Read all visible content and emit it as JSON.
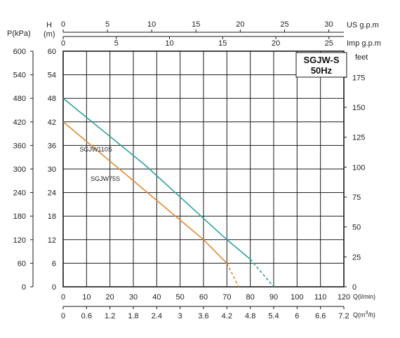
{
  "chart_data": {
    "type": "line",
    "title": "SGJW-S",
    "subtitle": "50Hz",
    "axes": {
      "x_main": {
        "label": "Q(l/min)",
        "min": 0,
        "max": 120,
        "ticks": [
          0,
          10,
          20,
          30,
          40,
          50,
          60,
          70,
          80,
          90,
          100,
          110,
          120
        ]
      },
      "x_m3h": {
        "label": "Q(m³/h)",
        "label_base": "Q(m",
        "label_sup": "3",
        "label_tail": "/h)",
        "ticks": [
          "0",
          "0.6",
          "1.2",
          "1.8",
          "2.4",
          "3",
          "3.6",
          "4.2",
          "4.8",
          "5.4",
          "6",
          "6.6",
          "7.2"
        ]
      },
      "x_us": {
        "label": "US g.p.m",
        "ticks": [
          0,
          5,
          10,
          15,
          20,
          25,
          30
        ],
        "max_at_main": 120
      },
      "x_imp": {
        "label": "Imp g.p.m",
        "ticks": [
          0,
          5,
          10,
          15,
          20,
          25
        ],
        "max_at_main": 120
      },
      "y_head_m": {
        "label_top": "H",
        "label_unit": "(m)",
        "min": 0,
        "max": 60,
        "ticks": [
          0,
          6,
          12,
          18,
          24,
          30,
          36,
          42,
          48,
          54,
          60
        ]
      },
      "y_kpa": {
        "label": "P(kPa)",
        "ticks": [
          0,
          60,
          120,
          180,
          240,
          300,
          360,
          420,
          480,
          540,
          600
        ]
      },
      "y_feet": {
        "label": "feet",
        "ticks": [
          0,
          25,
          50,
          75,
          100,
          125,
          150,
          175
        ]
      }
    },
    "series": [
      {
        "name": "SGJW110S",
        "color": "#2aa39b",
        "x": [
          0,
          35,
          70,
          80,
          90
        ],
        "y": [
          48,
          31,
          12,
          7,
          0
        ],
        "dashed_from_x": 80
      },
      {
        "name": "SGJW75S",
        "color": "#e08a2e",
        "x": [
          0,
          30,
          60,
          70,
          75
        ],
        "y": [
          42,
          27,
          12,
          6,
          0
        ],
        "dashed_from_x": 70
      }
    ],
    "grid": true
  }
}
